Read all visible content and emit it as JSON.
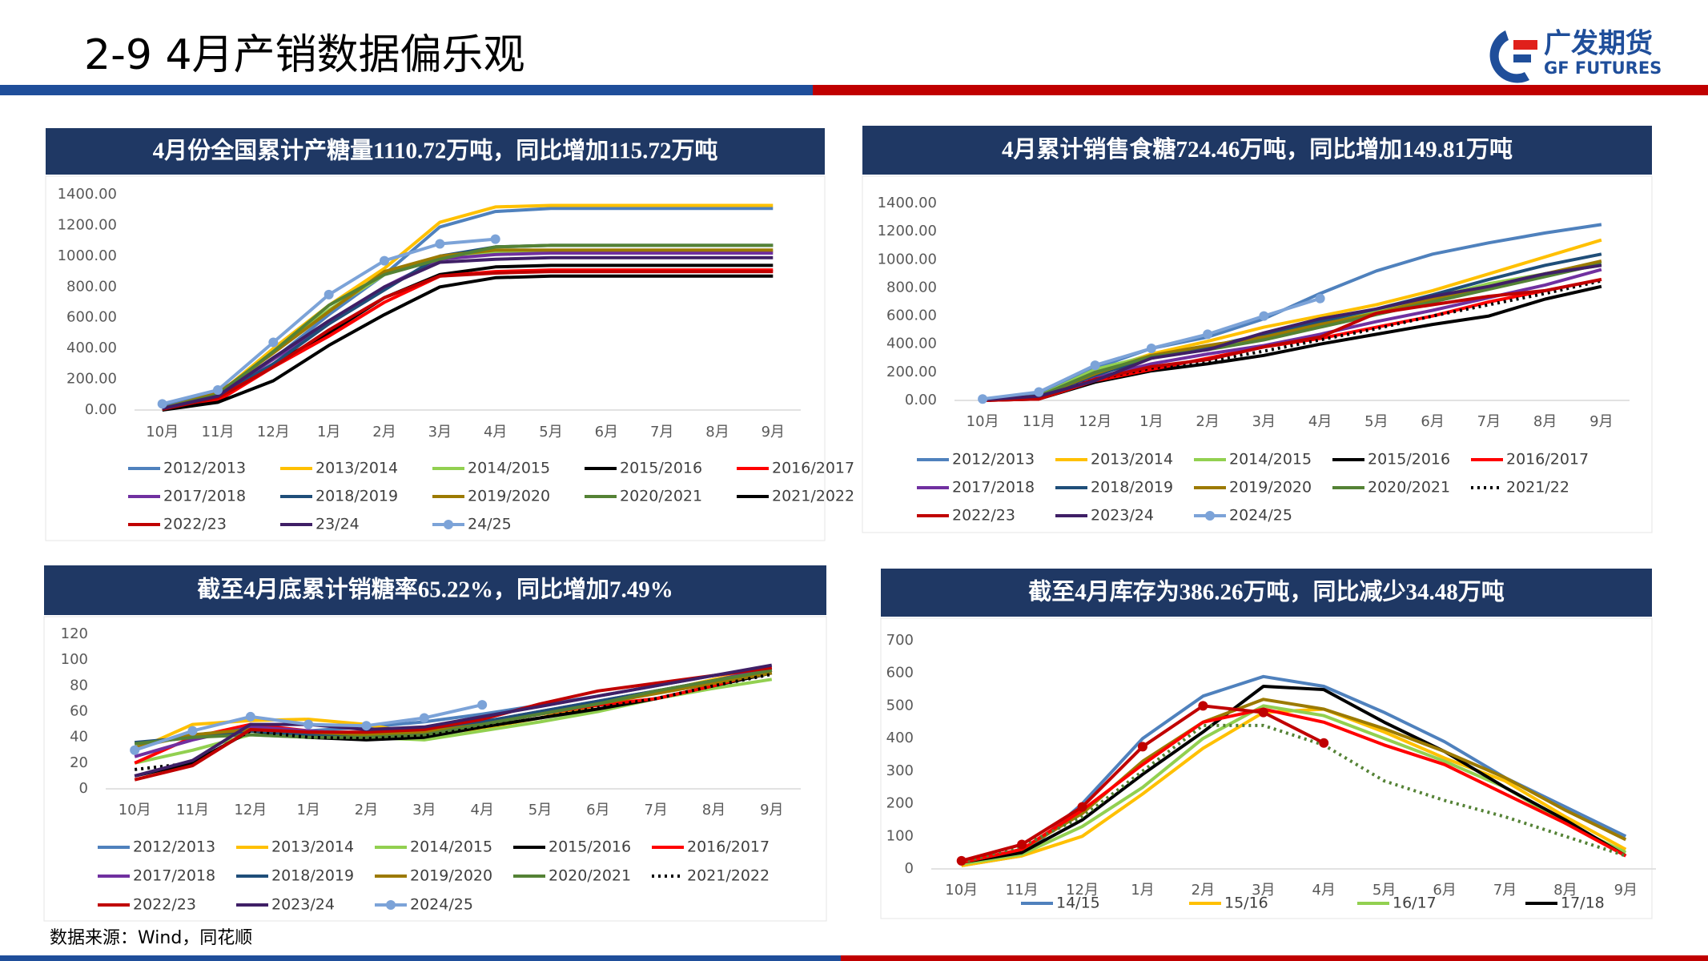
{
  "header": {
    "title": "2-9 4月产销数据偏乐观",
    "logo_cn": "广发期货",
    "logo_en": "GF FUTURES"
  },
  "footer": {
    "source": "数据来源：Wind，同花顺"
  },
  "chart_data": [
    {
      "type": "line",
      "title": "4月份全国累计产糖量1110.72万吨，同比增加115.72万吨",
      "categories": [
        "10月",
        "11月",
        "12月",
        "1月",
        "2月",
        "3月",
        "4月",
        "5月",
        "6月",
        "7月",
        "8月",
        "9月"
      ],
      "ylim": [
        0,
        1400
      ],
      "yticks": [
        {
          "value": 0,
          "label": "0.00"
        },
        {
          "value": 200,
          "label": "200.00"
        },
        {
          "value": 400,
          "label": "400.00"
        },
        {
          "value": 600,
          "label": "600.00"
        },
        {
          "value": 800,
          "label": "800.00"
        },
        {
          "value": 1000,
          "label": "1000.00"
        },
        {
          "value": 1200,
          "label": "1200.00"
        },
        {
          "value": 1400,
          "label": "1400.00"
        }
      ],
      "grid": false,
      "series": [
        {
          "name": "2012/2013",
          "color": "#4f81bd",
          "values": [
            20,
            120,
            330,
            620,
            880,
            1190,
            1290,
            1310,
            1310,
            1310,
            1310,
            1310
          ]
        },
        {
          "name": "2013/2014",
          "color": "#ffc000",
          "values": [
            10,
            100,
            400,
            680,
            920,
            1220,
            1320,
            1330,
            1330,
            1330,
            1330,
            1330
          ]
        },
        {
          "name": "2014/2015",
          "color": "#92d050",
          "values": [
            5,
            80,
            380,
            650,
            880,
            1000,
            1020,
            1030,
            1030,
            1030,
            1030,
            1030
          ]
        },
        {
          "name": "2015/2016",
          "color": "#000000",
          "values": [
            5,
            70,
            300,
            500,
            730,
            880,
            930,
            940,
            940,
            940,
            940,
            940
          ]
        },
        {
          "name": "2016/2017",
          "color": "#ff0000",
          "values": [
            5,
            60,
            280,
            480,
            700,
            870,
            900,
            910,
            910,
            910,
            910,
            910
          ]
        },
        {
          "name": "2017/2018",
          "color": "#7030a0",
          "values": [
            10,
            90,
            330,
            560,
            800,
            980,
            1010,
            1020,
            1020,
            1020,
            1020,
            1020
          ]
        },
        {
          "name": "2018/2019",
          "color": "#1f4e79",
          "values": [
            10,
            90,
            300,
            560,
            780,
            1000,
            1060,
            1070,
            1070,
            1070,
            1070,
            1070
          ]
        },
        {
          "name": "2019/2020",
          "color": "#9c7a00",
          "values": [
            10,
            110,
            370,
            640,
            900,
            1000,
            1040,
            1040,
            1040,
            1040,
            1040,
            1040
          ]
        },
        {
          "name": "2020/2021",
          "color": "#548235",
          "values": [
            10,
            100,
            380,
            680,
            880,
            980,
            1060,
            1070,
            1070,
            1070,
            1070,
            1070
          ]
        },
        {
          "name": "2021/2022",
          "color": "#000000",
          "values": [
            0,
            50,
            190,
            420,
            620,
            800,
            860,
            870,
            870,
            870,
            870,
            870
          ]
        },
        {
          "name": "2022/23",
          "color": "#c00000",
          "values": [
            5,
            80,
            280,
            520,
            730,
            870,
            890,
            900,
            900,
            900,
            900,
            900
          ]
        },
        {
          "name": "23/24",
          "color": "#3f1f66",
          "values": [
            10,
            90,
            340,
            580,
            800,
            960,
            980,
            990,
            990,
            990,
            990,
            990
          ]
        },
        {
          "name": "24/25",
          "color": "#7ca3d8",
          "marker": true,
          "values": [
            40,
            130,
            440,
            750,
            970,
            1080,
            1110.72,
            null,
            null,
            null,
            null,
            null
          ]
        }
      ]
    },
    {
      "type": "line",
      "title": "4月累计销售食糖724.46万吨，同比增加149.81万吨",
      "categories": [
        "10月",
        "11月",
        "12月",
        "1月",
        "2月",
        "3月",
        "4月",
        "5月",
        "6月",
        "7月",
        "8月",
        "9月"
      ],
      "ylim": [
        0,
        1400
      ],
      "yticks": [
        {
          "value": 0,
          "label": "0.00"
        },
        {
          "value": 200,
          "label": "200.00"
        },
        {
          "value": 400,
          "label": "400.00"
        },
        {
          "value": 600,
          "label": "600.00"
        },
        {
          "value": 800,
          "label": "800.00"
        },
        {
          "value": 1000,
          "label": "1000.00"
        },
        {
          "value": 1200,
          "label": "1200.00"
        },
        {
          "value": 1400,
          "label": "1400.00"
        }
      ],
      "grid": false,
      "series": [
        {
          "name": "2012/2013",
          "color": "#4f81bd",
          "values": [
            10,
            40,
            230,
            370,
            450,
            580,
            760,
            920,
            1040,
            1120,
            1190,
            1250
          ]
        },
        {
          "name": "2013/2014",
          "color": "#ffc000",
          "values": [
            5,
            30,
            200,
            330,
            420,
            520,
            600,
            680,
            780,
            900,
            1020,
            1140
          ]
        },
        {
          "name": "2014/2015",
          "color": "#92d050",
          "values": [
            5,
            30,
            220,
            320,
            380,
            450,
            550,
            640,
            730,
            830,
            900,
            960
          ]
        },
        {
          "name": "2015/2016",
          "color": "#000000",
          "values": [
            0,
            10,
            130,
            210,
            260,
            320,
            400,
            470,
            540,
            600,
            720,
            810
          ]
        },
        {
          "name": "2016/2017",
          "color": "#ff0000",
          "values": [
            0,
            10,
            140,
            220,
            300,
            380,
            440,
            520,
            600,
            700,
            780,
            860
          ]
        },
        {
          "name": "2017/2018",
          "color": "#7030a0",
          "values": [
            5,
            20,
            160,
            260,
            330,
            390,
            470,
            560,
            640,
            730,
            820,
            930
          ]
        },
        {
          "name": "2018/2019",
          "color": "#1f4e79",
          "values": [
            5,
            30,
            180,
            300,
            380,
            470,
            560,
            650,
            750,
            860,
            960,
            1040
          ]
        },
        {
          "name": "2019/2020",
          "color": "#9c7a00",
          "values": [
            5,
            30,
            190,
            320,
            390,
            450,
            540,
            620,
            720,
            810,
            900,
            990
          ]
        },
        {
          "name": "2020/2021",
          "color": "#548235",
          "values": [
            5,
            30,
            200,
            310,
            360,
            430,
            520,
            610,
            700,
            790,
            880,
            970
          ]
        },
        {
          "name": "2021/22",
          "color": "#000000",
          "dash": true,
          "values": [
            0,
            15,
            150,
            230,
            280,
            350,
            430,
            510,
            600,
            680,
            760,
            850
          ]
        },
        {
          "name": "2022/23",
          "color": "#c00000",
          "values": [
            0,
            10,
            150,
            240,
            290,
            380,
            450,
            620,
            680,
            740,
            780,
            860
          ]
        },
        {
          "name": "2023/24",
          "color": "#3f1f66",
          "values": [
            5,
            30,
            140,
            300,
            360,
            480,
            580,
            650,
            740,
            810,
            900,
            960
          ]
        },
        {
          "name": "2024/25",
          "color": "#7ca3d8",
          "marker": true,
          "values": [
            10,
            60,
            250,
            370,
            470,
            600,
            724.46,
            null,
            null,
            null,
            null,
            null
          ]
        }
      ]
    },
    {
      "type": "line",
      "title": "截至4月底累计销糖率65.22%，同比增加7.49%",
      "categories": [
        "10月",
        "11月",
        "12月",
        "1月",
        "2月",
        "3月",
        "4月",
        "5月",
        "6月",
        "7月",
        "8月",
        "9月"
      ],
      "ylim": [
        0,
        120
      ],
      "yticks": [
        0,
        20,
        40,
        60,
        80,
        100,
        120
      ],
      "grid": false,
      "series": [
        {
          "name": "2012/2013",
          "color": "#4f81bd",
          "values": [
            35,
            40,
            45,
            45,
            48,
            52,
            58,
            65,
            72,
            80,
            88,
            94
          ]
        },
        {
          "name": "2013/2014",
          "color": "#ffc000",
          "values": [
            30,
            50,
            53,
            54,
            50,
            42,
            47,
            55,
            65,
            75,
            85,
            93
          ]
        },
        {
          "name": "2014/2015",
          "color": "#92d050",
          "values": [
            20,
            30,
            42,
            40,
            40,
            38,
            45,
            52,
            60,
            70,
            78,
            85
          ]
        },
        {
          "name": "2015/2016",
          "color": "#000000",
          "values": [
            10,
            20,
            45,
            40,
            38,
            40,
            48,
            55,
            62,
            70,
            80,
            90
          ]
        },
        {
          "name": "2016/2017",
          "color": "#ff0000",
          "values": [
            20,
            40,
            50,
            45,
            42,
            44,
            50,
            58,
            65,
            70,
            80,
            92
          ]
        },
        {
          "name": "2017/2018",
          "color": "#7030a0",
          "values": [
            25,
            38,
            48,
            45,
            42,
            45,
            52,
            60,
            68,
            76,
            84,
            94
          ]
        },
        {
          "name": "2018/2019",
          "color": "#1f4e79",
          "values": [
            36,
            40,
            45,
            42,
            40,
            44,
            52,
            60,
            68,
            76,
            84,
            92
          ]
        },
        {
          "name": "2019/2020",
          "color": "#9c7a00",
          "values": [
            32,
            42,
            46,
            44,
            42,
            44,
            50,
            58,
            66,
            74,
            82,
            90
          ]
        },
        {
          "name": "2020/2021",
          "color": "#548235",
          "values": [
            35,
            40,
            42,
            40,
            40,
            42,
            50,
            58,
            66,
            76,
            84,
            92
          ]
        },
        {
          "name": "2021/2022",
          "color": "#000000",
          "dash": true,
          "values": [
            15,
            20,
            45,
            40,
            39,
            41,
            48,
            55,
            63,
            70,
            80,
            89
          ]
        },
        {
          "name": "2022/23",
          "color": "#c00000",
          "values": [
            7,
            18,
            46,
            44,
            44,
            46,
            54,
            66,
            76,
            82,
            88,
            94
          ]
        },
        {
          "name": "2023/24",
          "color": "#3f1f66",
          "values": [
            10,
            22,
            50,
            50,
            46,
            48,
            56,
            64,
            72,
            80,
            88,
            96
          ]
        },
        {
          "name": "2024/25",
          "color": "#7ca3d8",
          "marker": true,
          "values": [
            30,
            45,
            56,
            50,
            49,
            55,
            65.22,
            null,
            null,
            null,
            null,
            null
          ]
        }
      ]
    },
    {
      "type": "line",
      "title": "截至4月库存为386.26万吨，同比减少34.48万吨",
      "categories": [
        "10月",
        "11月",
        "12月",
        "1月",
        "2月",
        "3月",
        "4月",
        "5月",
        "6月",
        "7月",
        "8月",
        "9月"
      ],
      "ylim": [
        0,
        700
      ],
      "yticks": [
        0,
        100,
        200,
        300,
        400,
        500,
        600,
        700
      ],
      "grid": false,
      "series": [
        {
          "name": "14/15",
          "color": "#4f81bd",
          "values": [
            10,
            40,
            200,
            400,
            530,
            590,
            560,
            480,
            390,
            280,
            190,
            100
          ]
        },
        {
          "name": "15/16",
          "color": "#ffc000",
          "values": [
            10,
            40,
            100,
            230,
            370,
            480,
            490,
            420,
            340,
            270,
            160,
            60
          ]
        },
        {
          "name": "16/17",
          "color": "#92d050",
          "values": [
            15,
            45,
            130,
            250,
            400,
            500,
            470,
            400,
            330,
            250,
            140,
            50
          ]
        },
        {
          "name": "17/18",
          "color": "#000000",
          "values": [
            20,
            50,
            150,
            290,
            420,
            560,
            550,
            450,
            360,
            250,
            150,
            40
          ]
        },
        {
          "color": "#9c7a00",
          "values": [
            20,
            60,
            170,
            330,
            450,
            520,
            490,
            430,
            360,
            280,
            180,
            90
          ]
        },
        {
          "color": "#ff0000",
          "values": [
            20,
            60,
            180,
            320,
            450,
            490,
            450,
            380,
            320,
            230,
            140,
            40
          ]
        },
        {
          "color": "#548235",
          "dash": true,
          "values": [
            20,
            70,
            160,
            300,
            440,
            440,
            380,
            270,
            210,
            160,
            100,
            40
          ]
        },
        {
          "color": "#c00000",
          "marker": true,
          "values": [
            25,
            75,
            190,
            375,
            500,
            480,
            386.26,
            null,
            null,
            null,
            null,
            null
          ]
        }
      ]
    }
  ]
}
